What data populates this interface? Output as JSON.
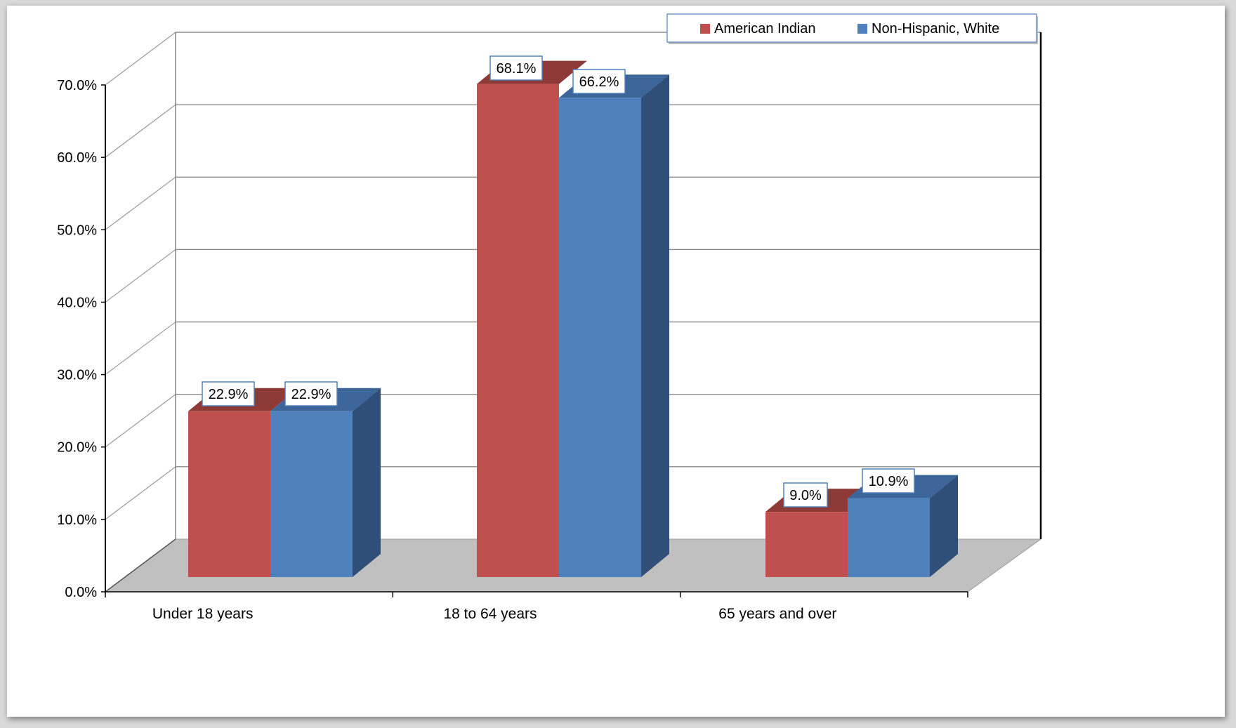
{
  "chart_data": {
    "type": "bar",
    "title": "",
    "xlabel": "",
    "ylabel": "",
    "categories": [
      "Under 18 years",
      "18 to 64 years",
      "65 years and over"
    ],
    "series": [
      {
        "name": "American Indian",
        "values": [
          22.9,
          68.1,
          9.0
        ],
        "labels": [
          "22.9%",
          "68.1%",
          "9.0%"
        ],
        "color": "#c0504d",
        "top_color": "#8e3a37"
      },
      {
        "name": "Non-Hispanic, White",
        "values": [
          22.9,
          66.2,
          10.9
        ],
        "labels": [
          "22.9%",
          "66.2%",
          "10.9%"
        ],
        "color": "#4f81bd",
        "top_color": "#3c659a",
        "side_color": "#2f4f78"
      }
    ],
    "ylim": [
      0,
      70
    ],
    "y_ticks": [
      "0.0%",
      "10.0%",
      "20.0%",
      "30.0%",
      "40.0%",
      "50.0%",
      "60.0%",
      "70.0%"
    ],
    "grid": true,
    "legend_position": "top-right",
    "floor_color": "#c0c0c0",
    "style": "3d-clustered-column"
  }
}
